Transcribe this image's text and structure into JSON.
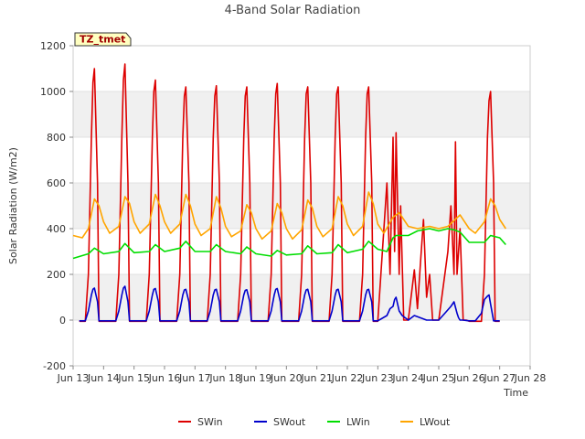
{
  "chart_data": {
    "type": "line",
    "title": "4-Band Solar Radiation",
    "xlabel": "Time",
    "ylabel": "Solar Radiation (W/m2)",
    "tag": "TZ_tmet",
    "x_ticks": [
      "Jun 13",
      "Jun 14",
      "Jun 15",
      "Jun 16",
      "Jun 17",
      "Jun 18",
      "Jun 19",
      "Jun 20",
      "Jun 21",
      "Jun 22",
      "Jun 23",
      "Jun 24",
      "Jun 25",
      "Jun 26",
      "Jun 27",
      "Jun 28"
    ],
    "xlim": [
      13,
      28
    ],
    "ylim": [
      -200,
      1200
    ],
    "y_ticks": [
      -200,
      0,
      200,
      400,
      600,
      800,
      1000,
      1200
    ],
    "grid": "horizontal bands",
    "legend_position": "bottom-center",
    "x_day_offset": 13.2,
    "series": [
      {
        "name": "SWin",
        "color": "#dd0000",
        "x": [
          13.2,
          13.4,
          13.5,
          13.6,
          13.65,
          13.7,
          13.8,
          13.85,
          14.0,
          14.2,
          14.4,
          14.5,
          14.6,
          14.65,
          14.7,
          14.8,
          14.85,
          15.0,
          15.2,
          15.4,
          15.5,
          15.6,
          15.65,
          15.7,
          15.8,
          15.85,
          16.0,
          16.2,
          16.4,
          16.5,
          16.6,
          16.65,
          16.7,
          16.8,
          16.85,
          17.0,
          17.2,
          17.4,
          17.5,
          17.6,
          17.65,
          17.7,
          17.8,
          17.85,
          18.0,
          18.2,
          18.4,
          18.5,
          18.6,
          18.65,
          18.7,
          18.8,
          18.85,
          19.0,
          19.2,
          19.4,
          19.5,
          19.6,
          19.65,
          19.7,
          19.8,
          19.85,
          20.0,
          20.2,
          20.4,
          20.5,
          20.6,
          20.65,
          20.7,
          20.8,
          20.85,
          21.0,
          21.2,
          21.4,
          21.5,
          21.6,
          21.65,
          21.7,
          21.8,
          21.85,
          22.0,
          22.2,
          22.4,
          22.5,
          22.6,
          22.65,
          22.7,
          22.8,
          22.85,
          23.0,
          23.3,
          23.4,
          23.5,
          23.55,
          23.6,
          23.7,
          23.75,
          23.85,
          24.0,
          24.2,
          24.3,
          24.4,
          24.5,
          24.6,
          24.7,
          24.8,
          24.9,
          25.0,
          25.3,
          25.4,
          25.5,
          25.55,
          25.6,
          25.7,
          25.8,
          25.9,
          26.0,
          26.2,
          26.4,
          26.5,
          26.6,
          26.65,
          26.7,
          26.8,
          26.85,
          27.0
        ],
        "values": [
          -5,
          -5,
          200,
          800,
          1040,
          1100,
          600,
          -5,
          -5,
          -5,
          -5,
          200,
          800,
          1050,
          1120,
          600,
          -5,
          -5,
          -5,
          -5,
          200,
          800,
          1000,
          1050,
          600,
          -5,
          -5,
          -5,
          -5,
          200,
          800,
          980,
          1020,
          600,
          -5,
          -5,
          -5,
          -5,
          200,
          800,
          980,
          1025,
          600,
          -5,
          -5,
          -5,
          -5,
          200,
          800,
          980,
          1020,
          600,
          -5,
          -5,
          -5,
          -5,
          200,
          800,
          990,
          1035,
          600,
          -5,
          -5,
          -5,
          -5,
          200,
          800,
          990,
          1020,
          600,
          -5,
          -5,
          -5,
          -5,
          200,
          800,
          990,
          1020,
          600,
          -5,
          -5,
          -5,
          -5,
          200,
          800,
          990,
          1020,
          600,
          -5,
          -5,
          600,
          200,
          800,
          300,
          820,
          200,
          500,
          0,
          0,
          220,
          50,
          250,
          440,
          100,
          200,
          0,
          0,
          0,
          300,
          500,
          200,
          780,
          200,
          400,
          0,
          0,
          -5,
          -5,
          -5,
          200,
          800,
          960,
          1000,
          600,
          -5,
          -5
        ]
      },
      {
        "name": "SWout",
        "color": "#0000cc",
        "x": [
          13.2,
          13.4,
          13.5,
          13.6,
          13.65,
          13.7,
          13.8,
          13.85,
          14.0,
          14.2,
          14.4,
          14.5,
          14.6,
          14.65,
          14.7,
          14.8,
          14.85,
          15.0,
          15.2,
          15.4,
          15.5,
          15.6,
          15.65,
          15.7,
          15.8,
          15.85,
          16.0,
          16.2,
          16.4,
          16.5,
          16.6,
          16.65,
          16.7,
          16.8,
          16.85,
          17.0,
          17.2,
          17.4,
          17.5,
          17.6,
          17.65,
          17.7,
          17.8,
          17.85,
          18.0,
          18.2,
          18.4,
          18.5,
          18.6,
          18.65,
          18.7,
          18.8,
          18.85,
          19.0,
          19.2,
          19.4,
          19.5,
          19.6,
          19.65,
          19.7,
          19.8,
          19.85,
          20.0,
          20.2,
          20.4,
          20.5,
          20.6,
          20.65,
          20.7,
          20.8,
          20.85,
          21.0,
          21.2,
          21.4,
          21.5,
          21.6,
          21.65,
          21.7,
          21.8,
          21.85,
          22.0,
          22.2,
          22.4,
          22.5,
          22.6,
          22.65,
          22.7,
          22.8,
          22.85,
          23.0,
          23.3,
          23.4,
          23.5,
          23.55,
          23.6,
          23.7,
          23.8,
          24.0,
          24.2,
          24.4,
          24.6,
          24.8,
          25.0,
          25.2,
          25.4,
          25.5,
          25.6,
          25.65,
          25.7,
          25.8,
          26.0,
          26.2,
          26.4,
          26.5,
          26.6,
          26.65,
          26.7,
          26.8,
          26.85,
          27.0
        ],
        "values": [
          -3,
          -3,
          40,
          110,
          135,
          140,
          80,
          -3,
          -3,
          -3,
          -3,
          40,
          110,
          140,
          148,
          80,
          -3,
          -3,
          -3,
          -3,
          40,
          110,
          135,
          138,
          80,
          -3,
          -3,
          -3,
          -3,
          40,
          110,
          132,
          135,
          80,
          -3,
          -3,
          -3,
          -3,
          40,
          110,
          132,
          135,
          80,
          -3,
          -3,
          -3,
          -3,
          40,
          110,
          130,
          133,
          80,
          -3,
          -3,
          -3,
          -3,
          40,
          110,
          135,
          138,
          80,
          -3,
          -3,
          -3,
          -3,
          40,
          110,
          132,
          135,
          80,
          -3,
          -3,
          -3,
          -3,
          40,
          110,
          132,
          135,
          80,
          -3,
          -3,
          -3,
          -3,
          40,
          110,
          132,
          135,
          80,
          -3,
          -3,
          20,
          50,
          60,
          90,
          100,
          40,
          20,
          0,
          20,
          10,
          0,
          0,
          0,
          30,
          60,
          80,
          30,
          10,
          0,
          0,
          -3,
          -3,
          30,
          90,
          105,
          110,
          70,
          -3,
          -3,
          -3
        ]
      },
      {
        "name": "LWin",
        "color": "#00dd00",
        "x": [
          13.0,
          13.5,
          13.7,
          14.0,
          14.5,
          14.7,
          15.0,
          15.5,
          15.7,
          16.0,
          16.5,
          16.7,
          17.0,
          17.5,
          17.7,
          18.0,
          18.5,
          18.7,
          19.0,
          19.5,
          19.7,
          20.0,
          20.5,
          20.7,
          21.0,
          21.5,
          21.7,
          22.0,
          22.5,
          22.7,
          23.0,
          23.3,
          23.5,
          23.6,
          24.0,
          24.3,
          24.7,
          25.0,
          25.3,
          25.5,
          25.7,
          26.0,
          26.5,
          26.7,
          27.0,
          27.2
        ],
        "values": [
          270,
          290,
          315,
          290,
          300,
          335,
          295,
          300,
          330,
          300,
          315,
          345,
          300,
          300,
          330,
          300,
          290,
          320,
          290,
          280,
          305,
          285,
          290,
          325,
          290,
          295,
          330,
          295,
          310,
          345,
          310,
          300,
          360,
          370,
          370,
          390,
          400,
          390,
          400,
          395,
          385,
          340,
          340,
          370,
          360,
          330
        ]
      },
      {
        "name": "LWout",
        "color": "#ffa500",
        "x": [
          13.0,
          13.3,
          13.5,
          13.7,
          13.85,
          14.0,
          14.2,
          14.5,
          14.7,
          14.85,
          15.0,
          15.2,
          15.5,
          15.7,
          15.85,
          16.0,
          16.2,
          16.5,
          16.7,
          16.85,
          17.0,
          17.2,
          17.5,
          17.7,
          17.85,
          18.0,
          18.2,
          18.5,
          18.7,
          18.85,
          19.0,
          19.2,
          19.5,
          19.7,
          19.85,
          20.0,
          20.2,
          20.5,
          20.7,
          20.85,
          21.0,
          21.2,
          21.5,
          21.7,
          21.85,
          22.0,
          22.2,
          22.5,
          22.7,
          22.85,
          23.0,
          23.2,
          23.5,
          23.7,
          24.0,
          24.3,
          24.7,
          25.0,
          25.3,
          25.7,
          26.0,
          26.2,
          26.5,
          26.7,
          26.85,
          27.0,
          27.2
        ],
        "values": [
          370,
          360,
          400,
          530,
          500,
          430,
          380,
          410,
          540,
          510,
          430,
          380,
          420,
          550,
          500,
          430,
          380,
          420,
          550,
          500,
          420,
          370,
          400,
          540,
          490,
          410,
          365,
          390,
          505,
          470,
          400,
          355,
          390,
          510,
          470,
          400,
          355,
          395,
          525,
          490,
          410,
          365,
          400,
          540,
          500,
          420,
          370,
          410,
          560,
          510,
          420,
          380,
          450,
          470,
          410,
          400,
          410,
          400,
          410,
          460,
          400,
          380,
          430,
          530,
          500,
          440,
          400
        ]
      }
    ]
  }
}
